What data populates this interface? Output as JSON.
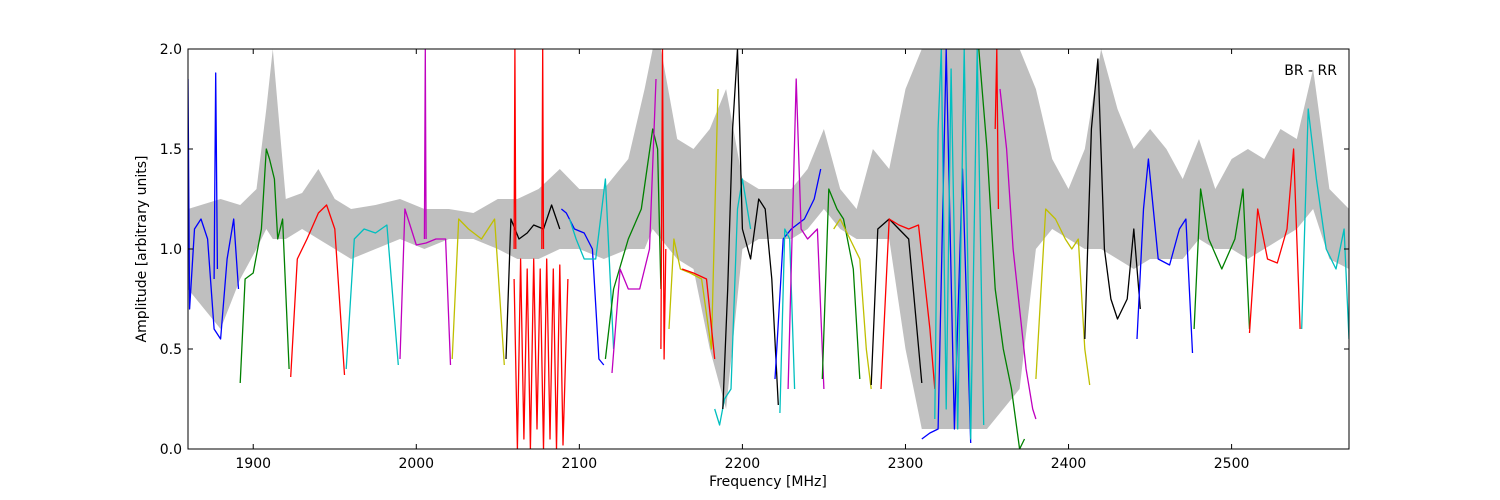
{
  "chart_data": {
    "type": "line",
    "title": "",
    "annotation": "BR - RR",
    "xlabel": "Frequency [MHz]",
    "ylabel": "Amplitude [arbitrary units]",
    "xlim": [
      1860,
      2572
    ],
    "ylim": [
      0.0,
      2.0
    ],
    "xticks": [
      1900,
      2000,
      2100,
      2200,
      2300,
      2400,
      2500
    ],
    "xtick_labels": [
      "1900",
      "2000",
      "2100",
      "2200",
      "2300",
      "2400",
      "2500"
    ],
    "yticks": [
      0.0,
      0.5,
      1.0,
      1.5,
      2.0
    ],
    "ytick_labels": [
      "0.0",
      "0.5",
      "1.0",
      "1.5",
      "2.0"
    ],
    "grid": false,
    "background_envelope": {
      "color": "#bfbfbf",
      "x": [
        1860,
        1880,
        1892,
        1902,
        1908,
        1912,
        1920,
        1930,
        1940,
        1950,
        1960,
        1975,
        1990,
        2005,
        2020,
        2035,
        2050,
        2062,
        2075,
        2088,
        2100,
        2115,
        2130,
        2140,
        2145,
        2150,
        2160,
        2170,
        2180,
        2190,
        2200,
        2210,
        2220,
        2230,
        2240,
        2250,
        2260,
        2270,
        2280,
        2290,
        2300,
        2310,
        2320,
        2330,
        2340,
        2350,
        2360,
        2370,
        2380,
        2390,
        2400,
        2410,
        2420,
        2430,
        2440,
        2450,
        2460,
        2470,
        2480,
        2490,
        2500,
        2510,
        2520,
        2530,
        2540,
        2550,
        2560,
        2572
      ],
      "upper": [
        1.2,
        1.25,
        1.22,
        1.3,
        1.7,
        2.0,
        1.25,
        1.28,
        1.4,
        1.25,
        1.2,
        1.22,
        1.25,
        1.2,
        1.2,
        1.18,
        1.25,
        1.25,
        1.3,
        1.4,
        1.3,
        1.3,
        1.45,
        1.8,
        2.0,
        2.0,
        1.55,
        1.5,
        1.6,
        1.8,
        1.35,
        1.3,
        1.3,
        1.3,
        1.4,
        1.6,
        1.3,
        1.2,
        1.5,
        1.4,
        1.8,
        2.0,
        2.0,
        2.0,
        2.0,
        2.0,
        2.0,
        2.0,
        1.8,
        1.45,
        1.3,
        1.5,
        2.0,
        1.7,
        1.5,
        1.6,
        1.5,
        1.35,
        1.55,
        1.3,
        1.45,
        1.5,
        1.45,
        1.6,
        1.55,
        1.9,
        1.3,
        1.2
      ],
      "lower": [
        0.8,
        0.6,
        0.85,
        1.0,
        1.1,
        1.05,
        1.05,
        1.1,
        1.05,
        1.0,
        0.95,
        1.0,
        1.05,
        1.0,
        1.05,
        1.05,
        1.0,
        0.95,
        0.95,
        1.0,
        1.0,
        0.95,
        1.0,
        1.0,
        1.1,
        1.05,
        0.95,
        0.9,
        0.5,
        0.2,
        1.0,
        1.05,
        1.05,
        1.05,
        1.1,
        1.2,
        1.1,
        1.05,
        1.05,
        1.05,
        0.5,
        0.1,
        0.1,
        0.1,
        0.1,
        0.1,
        0.2,
        0.3,
        1.0,
        1.1,
        1.05,
        1.0,
        1.0,
        0.95,
        0.9,
        0.95,
        0.95,
        0.95,
        1.05,
        1.0,
        1.0,
        0.95,
        1.0,
        1.05,
        1.1,
        1.2,
        0.95,
        0.9
      ]
    },
    "series": [
      {
        "color": "#0000ff",
        "x": [
          1860,
          1861,
          1864,
          1868,
          1872,
          1876,
          1880,
          1884,
          1888,
          1891
        ],
        "y": [
          1.85,
          0.7,
          1.1,
          1.15,
          1.05,
          0.6,
          0.55,
          0.95,
          1.15,
          0.8
        ]
      },
      {
        "color": "#0000ff",
        "x": [
          1876,
          1877,
          1878
        ],
        "y": [
          0.85,
          1.88,
          0.9
        ]
      },
      {
        "color": "#008000",
        "x": [
          1892,
          1895,
          1900,
          1905,
          1908,
          1910,
          1913,
          1915,
          1918,
          1922
        ],
        "y": [
          0.33,
          0.85,
          0.88,
          1.1,
          1.5,
          1.45,
          1.35,
          1.05,
          1.15,
          0.4
        ]
      },
      {
        "color": "#ff0000",
        "x": [
          1923,
          1927,
          1933,
          1940,
          1945,
          1950,
          1956
        ],
        "y": [
          0.36,
          0.95,
          1.05,
          1.18,
          1.22,
          1.1,
          0.37
        ]
      },
      {
        "color": "#00bfbf",
        "x": [
          1957,
          1962,
          1968,
          1975,
          1982,
          1989
        ],
        "y": [
          0.4,
          1.05,
          1.1,
          1.08,
          1.12,
          0.42
        ]
      },
      {
        "color": "#bf00bf",
        "x": [
          1990,
          1993,
          2000,
          2006,
          2012,
          2018,
          2021
        ],
        "y": [
          0.45,
          1.2,
          1.02,
          1.03,
          1.05,
          1.05,
          0.42
        ]
      },
      {
        "color": "#bf00bf",
        "x": [
          2005,
          2005.5,
          2006
        ],
        "y": [
          1.05,
          2.0,
          1.05
        ]
      },
      {
        "color": "#bfbf00",
        "x": [
          2022,
          2026,
          2032,
          2040,
          2048,
          2054
        ],
        "y": [
          0.45,
          1.15,
          1.1,
          1.05,
          1.15,
          0.42
        ]
      },
      {
        "color": "#000000",
        "x": [
          2055,
          2058,
          2063,
          2068,
          2072,
          2078,
          2083,
          2088
        ],
        "y": [
          0.45,
          1.15,
          1.05,
          1.08,
          1.12,
          1.1,
          1.22,
          1.1
        ]
      },
      {
        "color": "#ff0000",
        "x": [
          2060,
          2062,
          2064,
          2066,
          2068,
          2070,
          2072,
          2074,
          2076,
          2078,
          2080,
          2082,
          2084,
          2086,
          2088,
          2090,
          2093
        ],
        "y": [
          0.85,
          0.0,
          0.95,
          0.05,
          0.9,
          0.0,
          0.95,
          0.1,
          0.9,
          0.0,
          0.95,
          0.05,
          0.9,
          0.0,
          0.92,
          0.02,
          0.85
        ]
      },
      {
        "color": "#ff0000",
        "x": [
          2060,
          2060.5,
          2061
        ],
        "y": [
          1.0,
          2.0,
          1.0
        ]
      },
      {
        "color": "#ff0000",
        "x": [
          2077,
          2077.5,
          2078
        ],
        "y": [
          1.0,
          2.0,
          1.0
        ]
      },
      {
        "color": "#0000ff",
        "x": [
          2089,
          2092,
          2097,
          2103,
          2108,
          2112,
          2115
        ],
        "y": [
          1.2,
          1.18,
          1.1,
          1.08,
          1.0,
          0.45,
          0.42
        ]
      },
      {
        "color": "#00bfbf",
        "x": [
          2094,
          2098,
          2103,
          2110,
          2116,
          2121
        ],
        "y": [
          1.15,
          1.05,
          0.95,
          0.95,
          1.35,
          0.5
        ]
      },
      {
        "color": "#008000",
        "x": [
          2116,
          2121,
          2130,
          2138,
          2145,
          2148,
          2150
        ],
        "y": [
          0.45,
          0.8,
          1.05,
          1.2,
          1.6,
          1.5,
          0.8
        ]
      },
      {
        "color": "#bf00bf",
        "x": [
          2120,
          2125,
          2130,
          2137,
          2143,
          2147
        ],
        "y": [
          0.38,
          0.9,
          0.8,
          0.8,
          1.0,
          1.85
        ]
      },
      {
        "color": "#ff0000",
        "x": [
          2150,
          2151,
          2152,
          2153
        ],
        "y": [
          0.5,
          2.0,
          0.45,
          1.0
        ]
      },
      {
        "color": "#bfbf00",
        "x": [
          2155,
          2158,
          2162,
          2168,
          2175,
          2181,
          2185
        ],
        "y": [
          0.6,
          1.05,
          0.9,
          0.88,
          0.85,
          0.5,
          1.8
        ]
      },
      {
        "color": "#ff0000",
        "x": [
          2163,
          2170,
          2178,
          2183
        ],
        "y": [
          0.9,
          0.88,
          0.85,
          0.45
        ]
      },
      {
        "color": "#00bfbf",
        "x": [
          2183,
          2186,
          2189,
          2193,
          2197,
          2200,
          2205
        ],
        "y": [
          0.2,
          0.12,
          0.25,
          0.3,
          1.2,
          1.35,
          1.1
        ]
      },
      {
        "color": "#000000",
        "x": [
          2188,
          2191,
          2194,
          2197,
          2200,
          2205,
          2210,
          2214,
          2218,
          2222
        ],
        "y": [
          0.2,
          0.8,
          1.6,
          2.0,
          1.1,
          0.95,
          1.25,
          1.2,
          0.85,
          0.22
        ]
      },
      {
        "color": "#0000ff",
        "x": [
          2220,
          2225,
          2230,
          2238,
          2244,
          2248
        ],
        "y": [
          0.35,
          1.05,
          1.1,
          1.15,
          1.25,
          1.4
        ]
      },
      {
        "color": "#00bfbf",
        "x": [
          2223,
          2226,
          2229,
          2232
        ],
        "y": [
          0.18,
          1.1,
          1.05,
          0.3
        ]
      },
      {
        "color": "#bf00bf",
        "x": [
          2228,
          2233,
          2236,
          2240,
          2246,
          2250
        ],
        "y": [
          0.3,
          1.85,
          1.1,
          1.05,
          1.1,
          0.3
        ]
      },
      {
        "color": "#008000",
        "x": [
          2249,
          2253,
          2258,
          2262,
          2268,
          2272
        ],
        "y": [
          0.35,
          1.3,
          1.2,
          1.15,
          0.9,
          0.35
        ]
      },
      {
        "color": "#bfbf00",
        "x": [
          2256,
          2260,
          2266,
          2272,
          2276,
          2279
        ],
        "y": [
          1.1,
          1.15,
          1.05,
          0.95,
          0.5,
          0.3
        ]
      },
      {
        "color": "#000000",
        "x": [
          2279,
          2283,
          2290,
          2296,
          2302,
          2310
        ],
        "y": [
          0.32,
          1.1,
          1.15,
          1.1,
          1.05,
          0.33
        ]
      },
      {
        "color": "#ff0000",
        "x": [
          2285,
          2290,
          2296,
          2302,
          2308,
          2315,
          2318
        ],
        "y": [
          0.3,
          1.15,
          1.12,
          1.1,
          1.12,
          0.6,
          0.3
        ]
      },
      {
        "color": "#0000ff",
        "x": [
          2310,
          2315,
          2320,
          2325,
          2330,
          2335,
          2340
        ],
        "y": [
          0.05,
          0.08,
          0.1,
          2.0,
          0.1,
          1.4,
          0.03
        ]
      },
      {
        "color": "#00bfbf",
        "x": [
          2318,
          2320,
          2322,
          2325,
          2328,
          2332,
          2336,
          2340,
          2344,
          2348
        ],
        "y": [
          0.15,
          1.6,
          2.0,
          0.2,
          1.9,
          0.1,
          2.0,
          0.05,
          2.0,
          0.12
        ]
      },
      {
        "color": "#008000",
        "x": [
          2345,
          2350,
          2355,
          2360,
          2365,
          2370,
          2373
        ],
        "y": [
          2.0,
          1.5,
          0.8,
          0.5,
          0.3,
          0.0,
          0.05
        ]
      },
      {
        "color": "#bf00bf",
        "x": [
          2358,
          2362,
          2366,
          2370,
          2374,
          2378,
          2380
        ],
        "y": [
          1.8,
          1.5,
          1.0,
          0.7,
          0.4,
          0.2,
          0.15
        ]
      },
      {
        "color": "#ff0000",
        "x": [
          2355,
          2356,
          2357
        ],
        "y": [
          1.6,
          2.0,
          1.2
        ]
      },
      {
        "color": "#bfbf00",
        "x": [
          2380,
          2386,
          2392,
          2398,
          2402,
          2406,
          2410,
          2413
        ],
        "y": [
          0.35,
          1.2,
          1.15,
          1.05,
          1.0,
          1.05,
          0.5,
          0.32
        ]
      },
      {
        "color": "#000000",
        "x": [
          2410,
          2414,
          2418,
          2422,
          2426,
          2430,
          2436,
          2440,
          2444
        ],
        "y": [
          0.55,
          1.6,
          1.95,
          1.0,
          0.75,
          0.65,
          0.75,
          1.1,
          0.7
        ]
      },
      {
        "color": "#0000ff",
        "x": [
          2442,
          2446,
          2449,
          2455,
          2462,
          2468,
          2472,
          2476
        ],
        "y": [
          0.55,
          1.2,
          1.45,
          0.95,
          0.92,
          1.1,
          1.15,
          0.48
        ]
      },
      {
        "color": "#008000",
        "x": [
          2477,
          2481,
          2486,
          2494,
          2502,
          2507,
          2511
        ],
        "y": [
          0.6,
          1.3,
          1.05,
          0.9,
          1.05,
          1.3,
          0.6
        ]
      },
      {
        "color": "#ff0000",
        "x": [
          2511,
          2516,
          2522,
          2528,
          2534,
          2538,
          2542
        ],
        "y": [
          0.58,
          1.2,
          0.95,
          0.93,
          1.1,
          1.5,
          0.6
        ]
      },
      {
        "color": "#00bfbf",
        "x": [
          2543,
          2547,
          2552,
          2558,
          2564,
          2569,
          2572
        ],
        "y": [
          0.6,
          1.7,
          1.35,
          1.0,
          0.9,
          1.1,
          0.55
        ]
      }
    ]
  }
}
